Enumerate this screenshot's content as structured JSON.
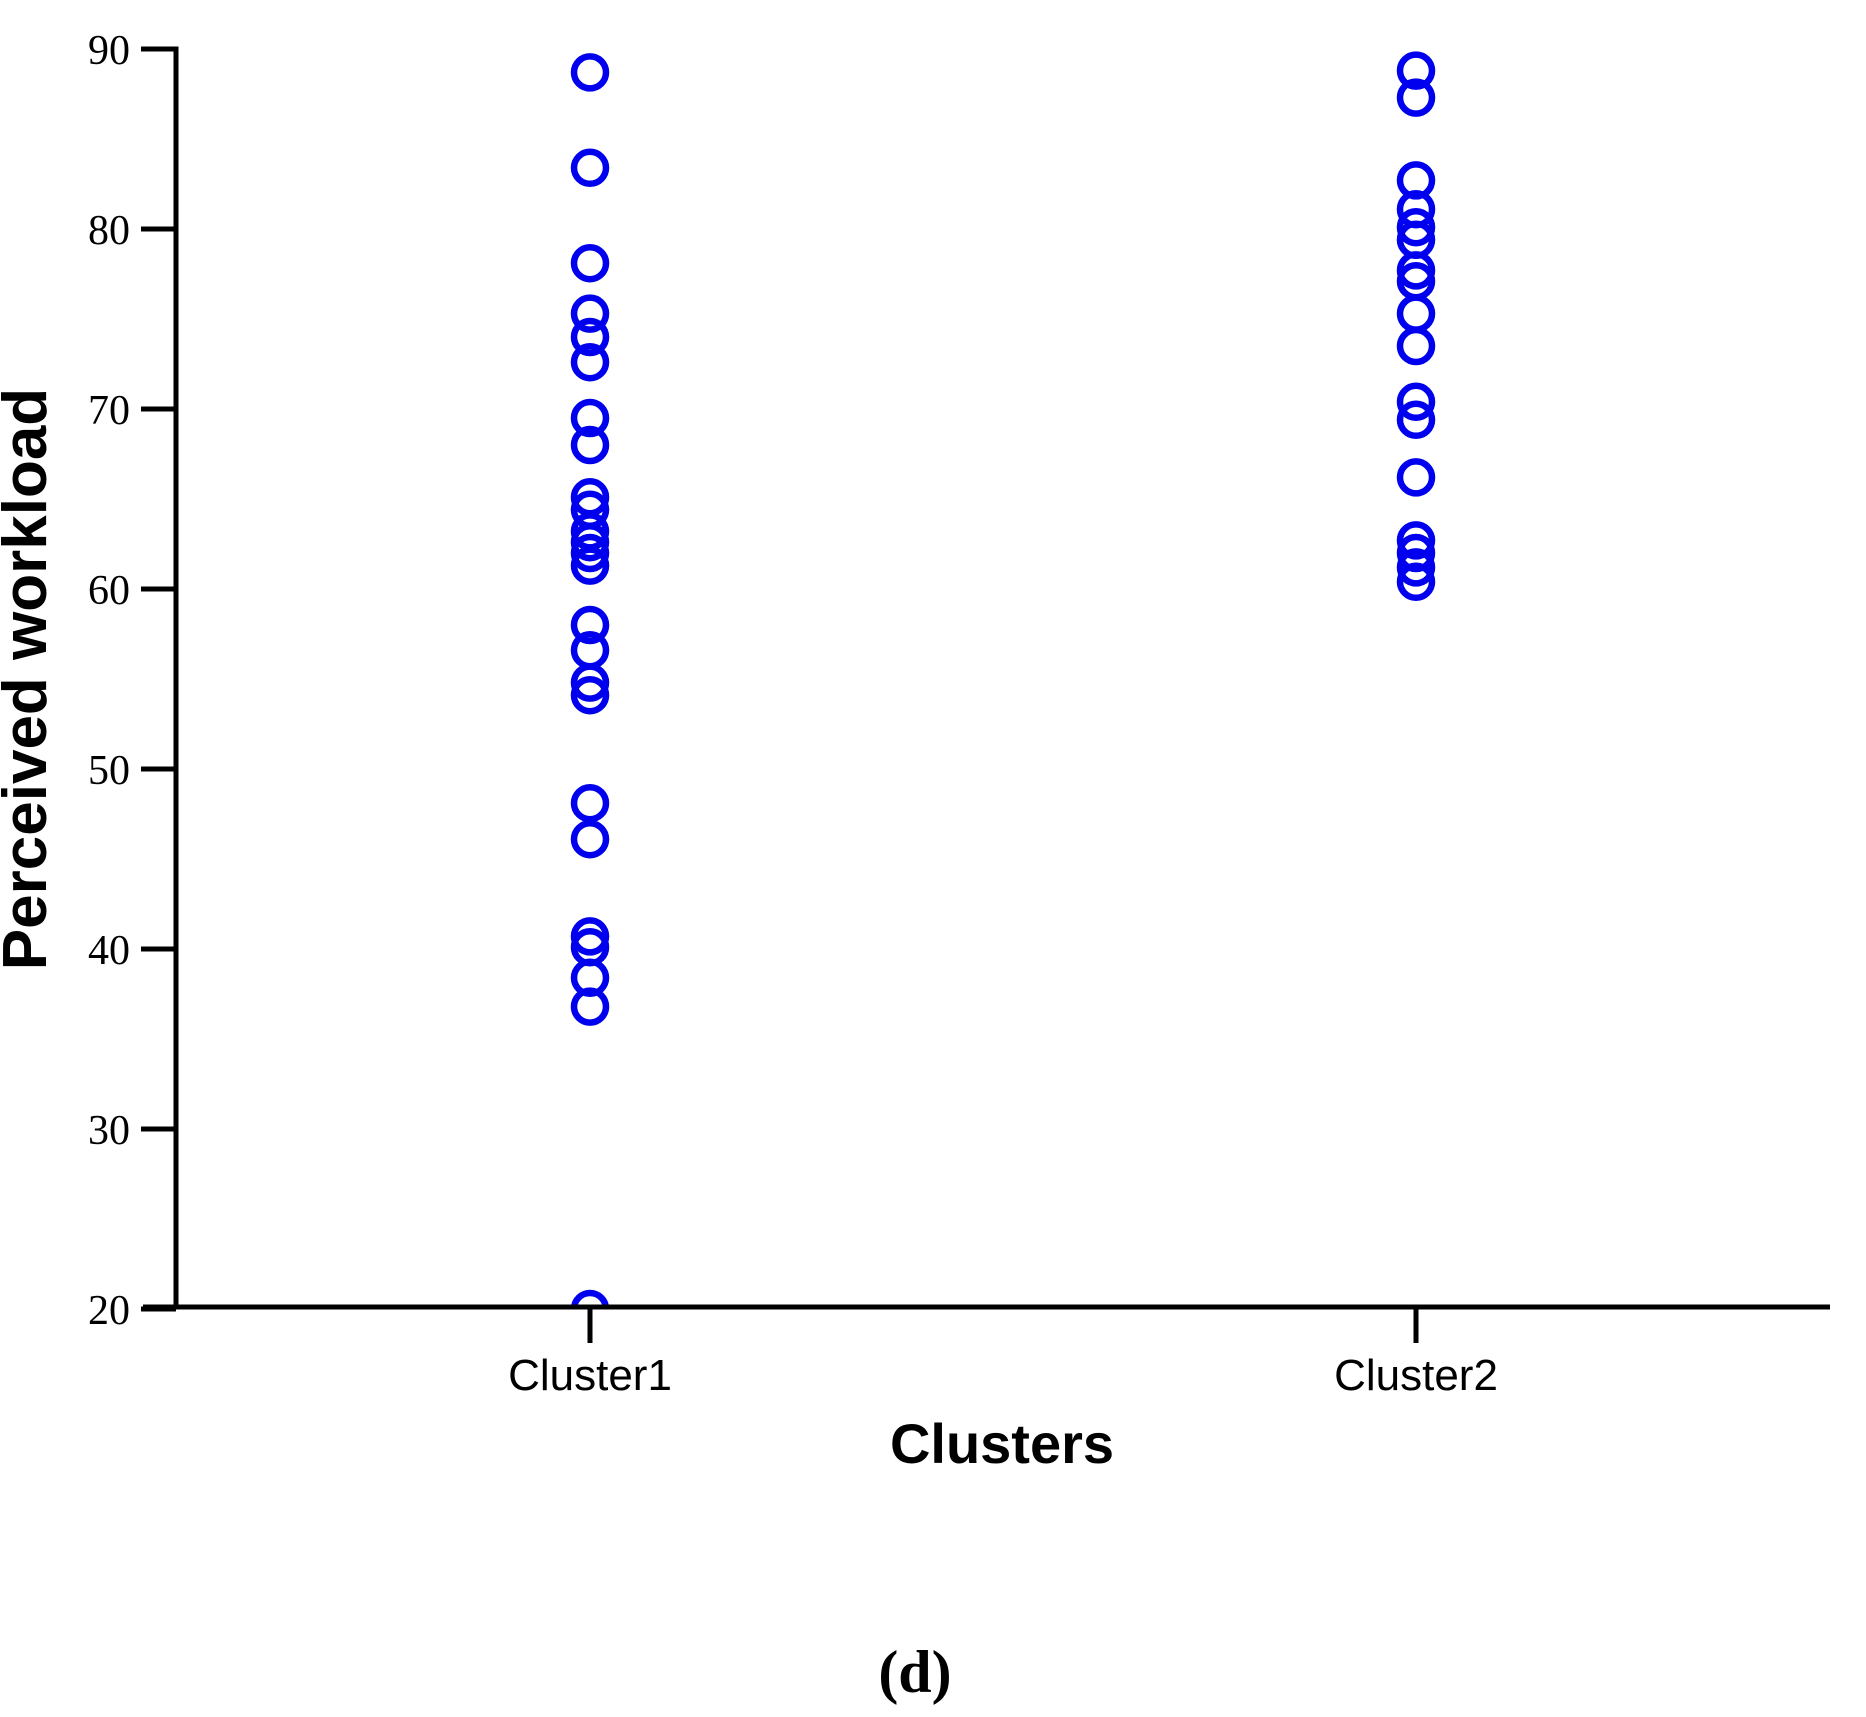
{
  "figure": {
    "caption": "(d)"
  },
  "chart_data": {
    "type": "scatter",
    "subtype": "strip-plot-open-circles",
    "title": "",
    "xlabel": "Clusters",
    "ylabel": "Perceived workload",
    "categories": [
      "Cluster1",
      "Cluster2"
    ],
    "ylim": [
      20,
      90
    ],
    "yticks": [
      "90",
      "80",
      "70",
      "60",
      "50",
      "40",
      "30",
      "20"
    ],
    "ytick_values": [
      90,
      80,
      70,
      60,
      50,
      40,
      30,
      20
    ],
    "grid": false,
    "legend": "none",
    "axis_color": "#000000",
    "marker": {
      "shape": "open-circle",
      "color": "#0000ee",
      "radius_px": 16,
      "stroke_px": 6.5
    },
    "series": [
      {
        "name": "Cluster1",
        "values": [
          88.7,
          83.4,
          78.1,
          75.3,
          74.0,
          72.6,
          69.5,
          68.0,
          65.1,
          64.4,
          63.2,
          62.6,
          62.0,
          61.3,
          58.0,
          56.6,
          54.8,
          54.1,
          48.1,
          46.1,
          40.7,
          40.1,
          38.4,
          36.8,
          20.0
        ]
      },
      {
        "name": "Cluster2",
        "values": [
          88.8,
          87.3,
          82.7,
          81.1,
          80.1,
          79.4,
          77.7,
          77.1,
          75.3,
          73.5,
          70.4,
          69.4,
          66.2,
          62.7,
          62.0,
          61.2,
          60.4
        ]
      }
    ]
  }
}
